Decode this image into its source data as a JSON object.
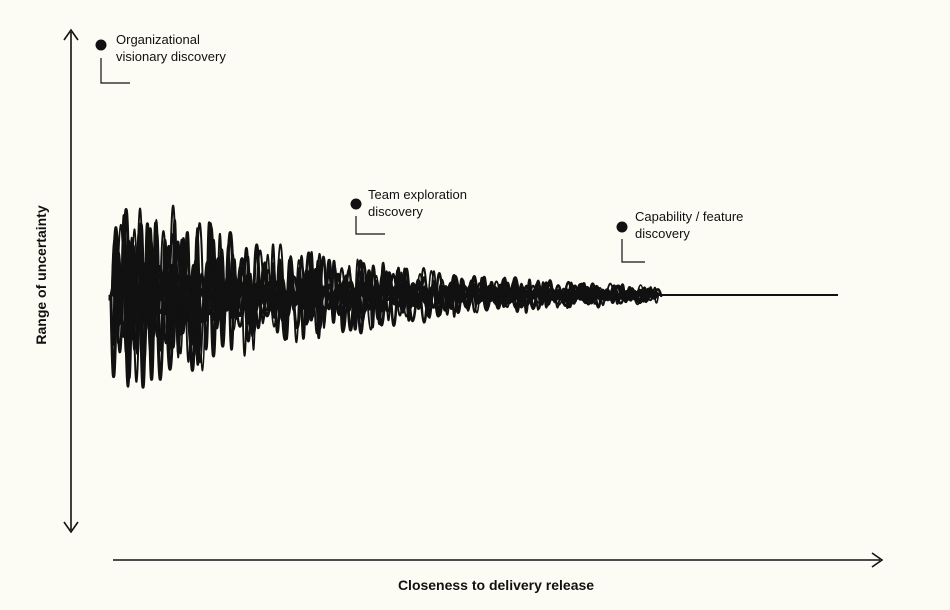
{
  "diagram": {
    "y_axis_label": "Range of uncertainty",
    "x_axis_label": "Closeness to delivery release",
    "annotations": [
      {
        "line1": "Organizational",
        "line2": "visionary discovery"
      },
      {
        "line1": "Team exploration",
        "line2": "discovery"
      },
      {
        "line1": "Capability / feature",
        "line2": "discovery"
      }
    ],
    "colors": {
      "background": "#fdfcf4",
      "ink": "#111111"
    }
  }
}
